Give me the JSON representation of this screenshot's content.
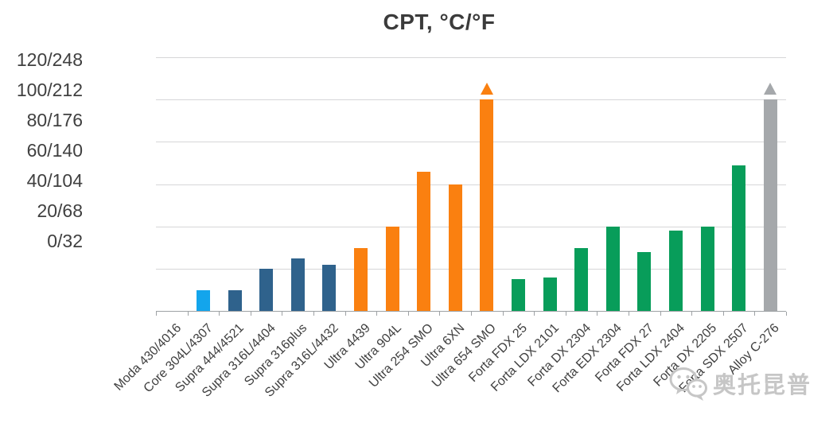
{
  "chart_data": {
    "type": "bar",
    "title": "CPT, °C/°F",
    "xlabel": "",
    "ylabel": "CPT, °C/°F",
    "ylim": [
      0,
      120
    ],
    "y_gridline_step": 20,
    "grid": true,
    "legend_position": "none",
    "y_tick_labels": [
      "120/248",
      "100/212",
      "80/176",
      "60/140",
      "40/104",
      "20/68",
      "0/32"
    ],
    "categories": [
      "Moda 430/4016",
      "Core 304L/4307",
      "Supra 444/4521",
      "Supra 316L/4404",
      "Supra 316plus",
      "Supra 316L/4432",
      "Ultra 4439",
      "Ultra 904L",
      "Ultra 254 SMO",
      "Ultra 6XN",
      "Ultra 654 SMO",
      "Forta FDX 25",
      "Forta LDX 2101",
      "Forta DX 2304",
      "Forta EDX 2304",
      "Forta FDX 27",
      "Forta LDX 2404",
      "Forta DX 2205",
      "Forta SDX 2507",
      "Alloy C-276"
    ],
    "values": [
      0,
      10,
      10,
      20,
      25,
      22,
      30,
      40,
      66,
      60,
      100,
      15,
      16,
      30,
      40,
      28,
      38,
      40,
      69,
      100
    ],
    "groups": [
      "moda",
      "core",
      "supra",
      "supra",
      "supra",
      "supra",
      "ultra",
      "ultra",
      "ultra",
      "ultra",
      "ultra",
      "forta",
      "forta",
      "forta",
      "forta",
      "forta",
      "forta",
      "forta",
      "forta",
      "alloy"
    ],
    "exceeds_scale_indices": [
      10,
      19
    ]
  },
  "colors": {
    "moda": "#13a5ec",
    "core": "#13a5ec",
    "supra": "#2f628c",
    "ultra": "#fa8010",
    "forta": "#089d5a",
    "alloy": "#a5a8ab",
    "gridline": "#d6d6d8",
    "axis_line": "#9ea2a5",
    "text": "#404040",
    "title_text": "#3b3b3b",
    "watermark": "#c6c6c6"
  },
  "watermark": {
    "icon": "wechat-icon",
    "text": "奥托昆普"
  }
}
